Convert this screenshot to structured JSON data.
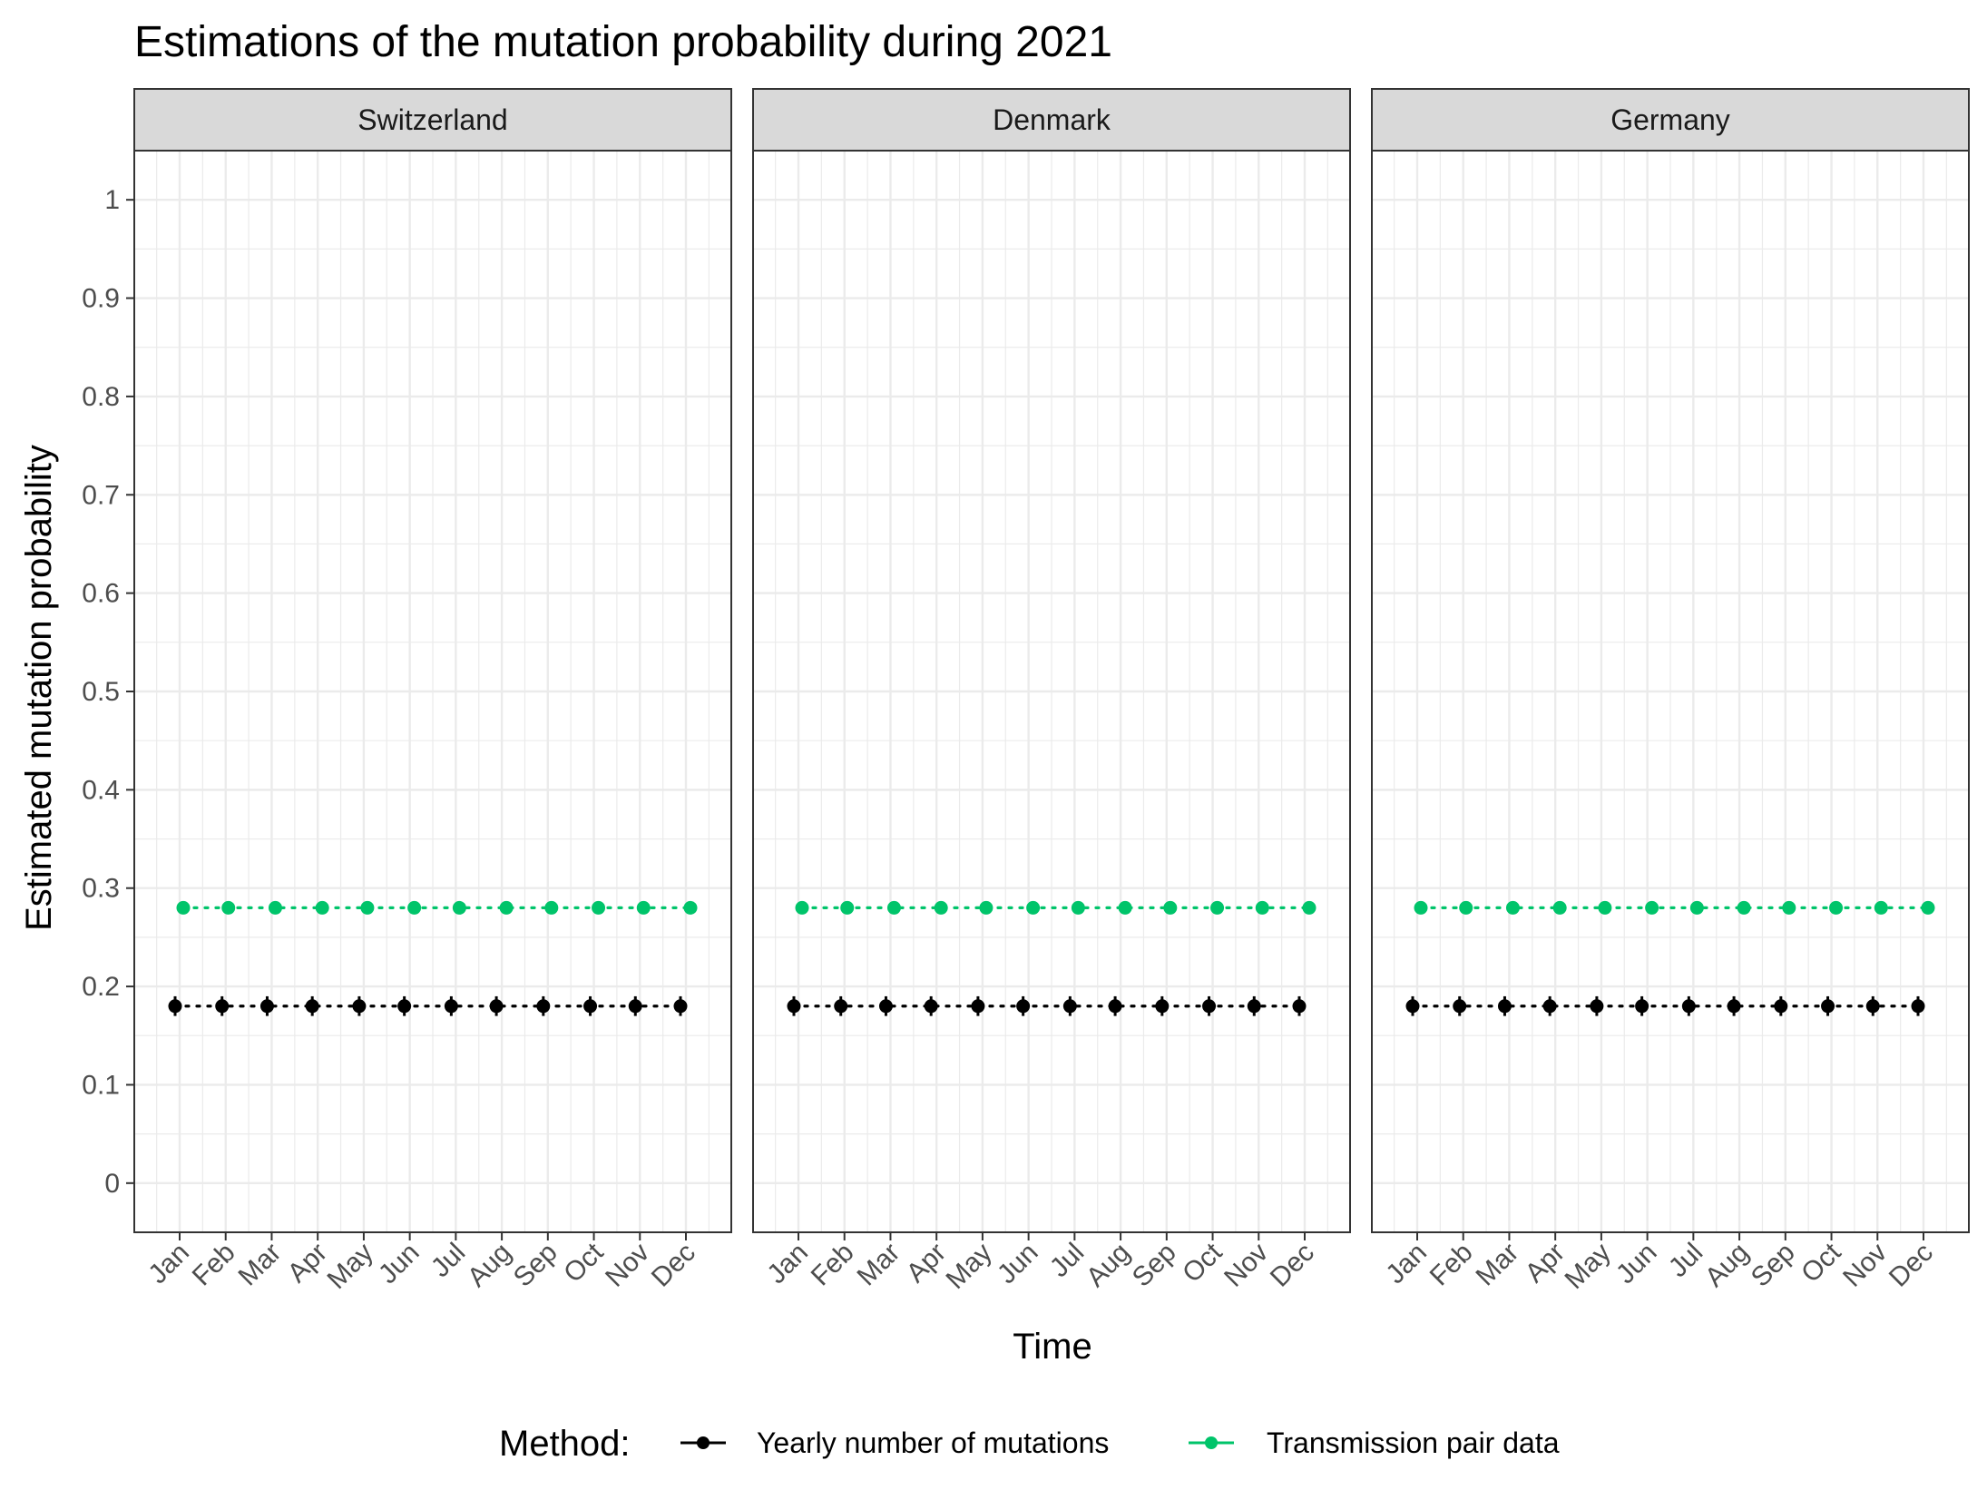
{
  "chart_data": {
    "type": "scatter",
    "title": "Estimations of the mutation probability during 2021",
    "xlabel": "Time",
    "ylabel": "Estimated mutation probability",
    "ylim": [
      -0.05,
      1.05
    ],
    "yticks": [
      "0",
      "0.1",
      "0.2",
      "0.3",
      "0.4",
      "0.5",
      "0.6",
      "0.7",
      "0.8",
      "0.9",
      "1"
    ],
    "categories": [
      "Jan",
      "Feb",
      "Mar",
      "Apr",
      "May",
      "Jun",
      "Jul",
      "Aug",
      "Sep",
      "Oct",
      "Nov",
      "Dec"
    ],
    "grid": true,
    "legend": {
      "title": "Method:",
      "position": "bottom",
      "entries": [
        {
          "label": "Yearly number of mutations",
          "color": "#000000"
        },
        {
          "label": "Transmission pair data",
          "color": "#00c46a"
        }
      ]
    },
    "panels": [
      {
        "name": "Switzerland",
        "series": [
          {
            "method": "Yearly number of mutations",
            "values": [
              0.18,
              0.18,
              0.18,
              0.18,
              0.18,
              0.18,
              0.18,
              0.18,
              0.18,
              0.18,
              0.18,
              0.18
            ],
            "error_low": [
              0.17,
              0.17,
              0.17,
              0.17,
              0.17,
              0.17,
              0.17,
              0.17,
              0.17,
              0.17,
              0.17,
              0.17
            ],
            "error_high": [
              0.19,
              0.19,
              0.19,
              0.19,
              0.19,
              0.19,
              0.19,
              0.19,
              0.19,
              0.19,
              0.19,
              0.19
            ]
          },
          {
            "method": "Transmission pair data",
            "values": [
              0.28,
              0.28,
              0.28,
              0.28,
              0.28,
              0.28,
              0.28,
              0.28,
              0.28,
              0.28,
              0.28,
              0.28
            ],
            "error_low": [
              0.277,
              0.277,
              0.277,
              0.277,
              0.277,
              0.277,
              0.277,
              0.277,
              0.277,
              0.277,
              0.277,
              0.277
            ],
            "error_high": [
              0.283,
              0.283,
              0.283,
              0.283,
              0.283,
              0.283,
              0.283,
              0.283,
              0.283,
              0.283,
              0.283,
              0.283
            ]
          }
        ]
      },
      {
        "name": "Denmark",
        "series": [
          {
            "method": "Yearly number of mutations",
            "values": [
              0.18,
              0.18,
              0.18,
              0.18,
              0.18,
              0.18,
              0.18,
              0.18,
              0.18,
              0.18,
              0.18,
              0.18
            ],
            "error_low": [
              0.17,
              0.17,
              0.17,
              0.17,
              0.17,
              0.17,
              0.17,
              0.17,
              0.17,
              0.17,
              0.17,
              0.17
            ],
            "error_high": [
              0.19,
              0.19,
              0.19,
              0.19,
              0.19,
              0.19,
              0.19,
              0.19,
              0.19,
              0.19,
              0.19,
              0.19
            ]
          },
          {
            "method": "Transmission pair data",
            "values": [
              0.28,
              0.28,
              0.28,
              0.28,
              0.28,
              0.28,
              0.28,
              0.28,
              0.28,
              0.28,
              0.28,
              0.28
            ],
            "error_low": [
              0.277,
              0.277,
              0.277,
              0.277,
              0.277,
              0.277,
              0.277,
              0.277,
              0.277,
              0.277,
              0.277,
              0.277
            ],
            "error_high": [
              0.283,
              0.283,
              0.283,
              0.283,
              0.283,
              0.283,
              0.283,
              0.283,
              0.283,
              0.283,
              0.283,
              0.283
            ]
          }
        ]
      },
      {
        "name": "Germany",
        "series": [
          {
            "method": "Yearly number of mutations",
            "values": [
              0.18,
              0.18,
              0.18,
              0.18,
              0.18,
              0.18,
              0.18,
              0.18,
              0.18,
              0.18,
              0.18,
              0.18
            ],
            "error_low": [
              0.17,
              0.17,
              0.17,
              0.17,
              0.17,
              0.17,
              0.17,
              0.17,
              0.17,
              0.17,
              0.17,
              0.17
            ],
            "error_high": [
              0.19,
              0.19,
              0.19,
              0.19,
              0.19,
              0.19,
              0.19,
              0.19,
              0.19,
              0.19,
              0.19,
              0.19
            ]
          },
          {
            "method": "Transmission pair data",
            "values": [
              0.28,
              0.28,
              0.28,
              0.28,
              0.28,
              0.28,
              0.28,
              0.28,
              0.28,
              0.28,
              0.28,
              0.28
            ],
            "error_low": [
              0.277,
              0.277,
              0.277,
              0.277,
              0.277,
              0.277,
              0.277,
              0.277,
              0.277,
              0.277,
              0.277,
              0.277
            ],
            "error_high": [
              0.283,
              0.283,
              0.283,
              0.283,
              0.283,
              0.283,
              0.283,
              0.283,
              0.283,
              0.283,
              0.283,
              0.283
            ]
          }
        ]
      }
    ]
  }
}
